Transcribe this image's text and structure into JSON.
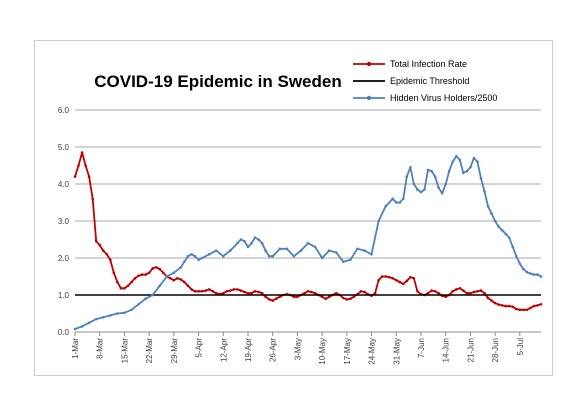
{
  "chart_data": {
    "type": "line",
    "title": "COVID-19 Epidemic in Sweden",
    "xlabel": "",
    "ylabel": "",
    "ylim": [
      0,
      6
    ],
    "yticks": [
      "0.0",
      "1.0",
      "2.0",
      "3.0",
      "4.0",
      "5.0",
      "6.0"
    ],
    "x_range": [
      "2020-03-01",
      "2020-07-11"
    ],
    "xticks": [
      {
        "date": "2020-03-01",
        "label": "1-Mar"
      },
      {
        "date": "2020-03-08",
        "label": "8-Mar"
      },
      {
        "date": "2020-03-15",
        "label": "15-Mar"
      },
      {
        "date": "2020-03-22",
        "label": "22-Mar"
      },
      {
        "date": "2020-03-29",
        "label": "29-Mar"
      },
      {
        "date": "2020-04-05",
        "label": "5-Apr"
      },
      {
        "date": "2020-04-12",
        "label": "12-Apr"
      },
      {
        "date": "2020-04-19",
        "label": "19-Apr"
      },
      {
        "date": "2020-04-26",
        "label": "26-Apr"
      },
      {
        "date": "2020-05-03",
        "label": "3-May"
      },
      {
        "date": "2020-05-10",
        "label": "10-May"
      },
      {
        "date": "2020-05-17",
        "label": "17-May"
      },
      {
        "date": "2020-05-24",
        "label": "24-May"
      },
      {
        "date": "2020-05-31",
        "label": "31-May"
      },
      {
        "date": "2020-06-07",
        "label": "7-Jun"
      },
      {
        "date": "2020-06-14",
        "label": "14-Jun"
      },
      {
        "date": "2020-06-21",
        "label": "21-Jun"
      },
      {
        "date": "2020-06-28",
        "label": "28-Jun"
      },
      {
        "date": "2020-07-05",
        "label": "5-Jul"
      }
    ],
    "grid": true,
    "legend_position": "top-right",
    "series": [
      {
        "name": "Total Infection Rate",
        "color": "#c00000",
        "marker": "circle",
        "points": [
          [
            "2020-03-01",
            4.2
          ],
          [
            "2020-03-02",
            4.5
          ],
          [
            "2020-03-03",
            4.85
          ],
          [
            "2020-03-04",
            4.5
          ],
          [
            "2020-03-05",
            4.2
          ],
          [
            "2020-03-06",
            3.6
          ],
          [
            "2020-03-07",
            2.45
          ],
          [
            "2020-03-08",
            2.35
          ],
          [
            "2020-03-09",
            2.2
          ],
          [
            "2020-03-10",
            2.1
          ],
          [
            "2020-03-11",
            1.95
          ],
          [
            "2020-03-12",
            1.6
          ],
          [
            "2020-03-13",
            1.35
          ],
          [
            "2020-03-14",
            1.18
          ],
          [
            "2020-03-15",
            1.18
          ],
          [
            "2020-03-16",
            1.25
          ],
          [
            "2020-03-17",
            1.35
          ],
          [
            "2020-03-18",
            1.45
          ],
          [
            "2020-03-19",
            1.52
          ],
          [
            "2020-03-20",
            1.55
          ],
          [
            "2020-03-21",
            1.55
          ],
          [
            "2020-03-22",
            1.6
          ],
          [
            "2020-03-23",
            1.72
          ],
          [
            "2020-03-24",
            1.75
          ],
          [
            "2020-03-25",
            1.7
          ],
          [
            "2020-03-26",
            1.6
          ],
          [
            "2020-03-27",
            1.5
          ],
          [
            "2020-03-28",
            1.45
          ],
          [
            "2020-03-29",
            1.4
          ],
          [
            "2020-03-30",
            1.45
          ],
          [
            "2020-03-31",
            1.42
          ],
          [
            "2020-04-01",
            1.35
          ],
          [
            "2020-04-02",
            1.25
          ],
          [
            "2020-04-03",
            1.15
          ],
          [
            "2020-04-04",
            1.1
          ],
          [
            "2020-04-05",
            1.1
          ],
          [
            "2020-04-06",
            1.1
          ],
          [
            "2020-04-07",
            1.12
          ],
          [
            "2020-04-08",
            1.15
          ],
          [
            "2020-04-09",
            1.1
          ],
          [
            "2020-04-10",
            1.05
          ],
          [
            "2020-04-11",
            1.02
          ],
          [
            "2020-04-12",
            1.05
          ],
          [
            "2020-04-13",
            1.1
          ],
          [
            "2020-04-14",
            1.12
          ],
          [
            "2020-04-15",
            1.15
          ],
          [
            "2020-04-16",
            1.15
          ],
          [
            "2020-04-17",
            1.12
          ],
          [
            "2020-04-18",
            1.08
          ],
          [
            "2020-04-19",
            1.05
          ],
          [
            "2020-04-20",
            1.05
          ],
          [
            "2020-04-21",
            1.1
          ],
          [
            "2020-04-22",
            1.08
          ],
          [
            "2020-04-23",
            1.05
          ],
          [
            "2020-04-24",
            0.95
          ],
          [
            "2020-04-25",
            0.88
          ],
          [
            "2020-04-26",
            0.85
          ],
          [
            "2020-04-27",
            0.9
          ],
          [
            "2020-04-28",
            0.95
          ],
          [
            "2020-04-29",
            1.0
          ],
          [
            "2020-04-30",
            1.02
          ],
          [
            "2020-05-01",
            1.0
          ],
          [
            "2020-05-02",
            0.95
          ],
          [
            "2020-05-03",
            0.95
          ],
          [
            "2020-05-04",
            1.0
          ],
          [
            "2020-05-05",
            1.05
          ],
          [
            "2020-05-06",
            1.1
          ],
          [
            "2020-05-07",
            1.08
          ],
          [
            "2020-05-08",
            1.05
          ],
          [
            "2020-05-09",
            1.0
          ],
          [
            "2020-05-10",
            0.95
          ],
          [
            "2020-05-11",
            0.9
          ],
          [
            "2020-05-12",
            0.95
          ],
          [
            "2020-05-13",
            1.0
          ],
          [
            "2020-05-14",
            1.05
          ],
          [
            "2020-05-15",
            1.0
          ],
          [
            "2020-05-16",
            0.92
          ],
          [
            "2020-05-17",
            0.88
          ],
          [
            "2020-05-18",
            0.9
          ],
          [
            "2020-05-19",
            0.95
          ],
          [
            "2020-05-20",
            1.02
          ],
          [
            "2020-05-21",
            1.1
          ],
          [
            "2020-05-22",
            1.08
          ],
          [
            "2020-05-23",
            1.02
          ],
          [
            "2020-05-24",
            0.98
          ],
          [
            "2020-05-25",
            1.05
          ],
          [
            "2020-05-26",
            1.4
          ],
          [
            "2020-05-27",
            1.5
          ],
          [
            "2020-05-28",
            1.5
          ],
          [
            "2020-05-29",
            1.48
          ],
          [
            "2020-05-30",
            1.45
          ],
          [
            "2020-05-31",
            1.4
          ],
          [
            "2020-06-01",
            1.35
          ],
          [
            "2020-06-02",
            1.3
          ],
          [
            "2020-06-03",
            1.38
          ],
          [
            "2020-06-04",
            1.48
          ],
          [
            "2020-06-05",
            1.45
          ],
          [
            "2020-06-06",
            1.1
          ],
          [
            "2020-06-07",
            1.02
          ],
          [
            "2020-06-08",
            1.0
          ],
          [
            "2020-06-09",
            1.05
          ],
          [
            "2020-06-10",
            1.12
          ],
          [
            "2020-06-11",
            1.1
          ],
          [
            "2020-06-12",
            1.05
          ],
          [
            "2020-06-13",
            0.98
          ],
          [
            "2020-06-14",
            0.95
          ],
          [
            "2020-06-15",
            1.0
          ],
          [
            "2020-06-16",
            1.1
          ],
          [
            "2020-06-17",
            1.15
          ],
          [
            "2020-06-18",
            1.18
          ],
          [
            "2020-06-19",
            1.12
          ],
          [
            "2020-06-20",
            1.05
          ],
          [
            "2020-06-21",
            1.05
          ],
          [
            "2020-06-22",
            1.08
          ],
          [
            "2020-06-23",
            1.1
          ],
          [
            "2020-06-24",
            1.12
          ],
          [
            "2020-06-25",
            1.05
          ],
          [
            "2020-06-26",
            0.92
          ],
          [
            "2020-06-27",
            0.85
          ],
          [
            "2020-06-28",
            0.78
          ],
          [
            "2020-06-29",
            0.74
          ],
          [
            "2020-06-30",
            0.72
          ],
          [
            "2020-07-01",
            0.7
          ],
          [
            "2020-07-02",
            0.7
          ],
          [
            "2020-07-03",
            0.68
          ],
          [
            "2020-07-04",
            0.62
          ],
          [
            "2020-07-05",
            0.6
          ],
          [
            "2020-07-06",
            0.6
          ],
          [
            "2020-07-07",
            0.6
          ],
          [
            "2020-07-08",
            0.65
          ],
          [
            "2020-07-09",
            0.7
          ],
          [
            "2020-07-10",
            0.72
          ],
          [
            "2020-07-11",
            0.75
          ]
        ]
      },
      {
        "name": "Epidemic Threshold",
        "color": "#000000",
        "marker": "none",
        "points": [
          [
            "2020-03-01",
            1.0
          ],
          [
            "2020-07-11",
            1.0
          ]
        ]
      },
      {
        "name": "Hidden Virus Holders/2500",
        "color": "#4f81bd",
        "marker": "circle",
        "points": [
          [
            "2020-03-01",
            0.08
          ],
          [
            "2020-03-03",
            0.15
          ],
          [
            "2020-03-05",
            0.25
          ],
          [
            "2020-03-07",
            0.35
          ],
          [
            "2020-03-09",
            0.4
          ],
          [
            "2020-03-11",
            0.45
          ],
          [
            "2020-03-13",
            0.5
          ],
          [
            "2020-03-15",
            0.52
          ],
          [
            "2020-03-17",
            0.6
          ],
          [
            "2020-03-19",
            0.75
          ],
          [
            "2020-03-21",
            0.9
          ],
          [
            "2020-03-23",
            1.0
          ],
          [
            "2020-03-25",
            1.25
          ],
          [
            "2020-03-27",
            1.5
          ],
          [
            "2020-03-29",
            1.6
          ],
          [
            "2020-03-31",
            1.75
          ],
          [
            "2020-04-01",
            1.9
          ],
          [
            "2020-04-02",
            2.05
          ],
          [
            "2020-04-03",
            2.1
          ],
          [
            "2020-04-04",
            2.05
          ],
          [
            "2020-04-05",
            1.95
          ],
          [
            "2020-04-06",
            2.0
          ],
          [
            "2020-04-08",
            2.1
          ],
          [
            "2020-04-10",
            2.2
          ],
          [
            "2020-04-12",
            2.05
          ],
          [
            "2020-04-14",
            2.2
          ],
          [
            "2020-04-16",
            2.4
          ],
          [
            "2020-04-17",
            2.5
          ],
          [
            "2020-04-18",
            2.45
          ],
          [
            "2020-04-19",
            2.3
          ],
          [
            "2020-04-20",
            2.4
          ],
          [
            "2020-04-21",
            2.55
          ],
          [
            "2020-04-22",
            2.5
          ],
          [
            "2020-04-23",
            2.4
          ],
          [
            "2020-04-24",
            2.2
          ],
          [
            "2020-04-25",
            2.05
          ],
          [
            "2020-04-26",
            2.05
          ],
          [
            "2020-04-28",
            2.25
          ],
          [
            "2020-04-30",
            2.25
          ],
          [
            "2020-05-02",
            2.05
          ],
          [
            "2020-05-04",
            2.2
          ],
          [
            "2020-05-06",
            2.4
          ],
          [
            "2020-05-08",
            2.3
          ],
          [
            "2020-05-10",
            2.0
          ],
          [
            "2020-05-12",
            2.2
          ],
          [
            "2020-05-14",
            2.15
          ],
          [
            "2020-05-16",
            1.9
          ],
          [
            "2020-05-18",
            1.95
          ],
          [
            "2020-05-20",
            2.25
          ],
          [
            "2020-05-22",
            2.2
          ],
          [
            "2020-05-24",
            2.1
          ],
          [
            "2020-05-26",
            3.0
          ],
          [
            "2020-05-28",
            3.4
          ],
          [
            "2020-05-30",
            3.6
          ],
          [
            "2020-05-31",
            3.5
          ],
          [
            "2020-06-01",
            3.5
          ],
          [
            "2020-06-02",
            3.6
          ],
          [
            "2020-06-03",
            4.2
          ],
          [
            "2020-06-04",
            4.45
          ],
          [
            "2020-06-05",
            4.0
          ],
          [
            "2020-06-06",
            3.85
          ],
          [
            "2020-06-07",
            3.78
          ],
          [
            "2020-06-08",
            3.85
          ],
          [
            "2020-06-09",
            4.38
          ],
          [
            "2020-06-10",
            4.35
          ],
          [
            "2020-06-11",
            4.2
          ],
          [
            "2020-06-12",
            3.9
          ],
          [
            "2020-06-13",
            3.75
          ],
          [
            "2020-06-14",
            4.0
          ],
          [
            "2020-06-15",
            4.35
          ],
          [
            "2020-06-16",
            4.6
          ],
          [
            "2020-06-17",
            4.75
          ],
          [
            "2020-06-18",
            4.65
          ],
          [
            "2020-06-19",
            4.3
          ],
          [
            "2020-06-20",
            4.35
          ],
          [
            "2020-06-21",
            4.45
          ],
          [
            "2020-06-22",
            4.7
          ],
          [
            "2020-06-23",
            4.6
          ],
          [
            "2020-06-24",
            4.15
          ],
          [
            "2020-06-25",
            3.8
          ],
          [
            "2020-06-26",
            3.4
          ],
          [
            "2020-06-27",
            3.2
          ],
          [
            "2020-06-28",
            3.0
          ],
          [
            "2020-06-29",
            2.85
          ],
          [
            "2020-06-30",
            2.75
          ],
          [
            "2020-07-01",
            2.65
          ],
          [
            "2020-07-02",
            2.55
          ],
          [
            "2020-07-03",
            2.3
          ],
          [
            "2020-07-04",
            2.05
          ],
          [
            "2020-07-05",
            1.85
          ],
          [
            "2020-07-06",
            1.7
          ],
          [
            "2020-07-07",
            1.62
          ],
          [
            "2020-07-08",
            1.58
          ],
          [
            "2020-07-09",
            1.55
          ],
          [
            "2020-07-10",
            1.55
          ],
          [
            "2020-07-11",
            1.5
          ]
        ]
      }
    ]
  }
}
